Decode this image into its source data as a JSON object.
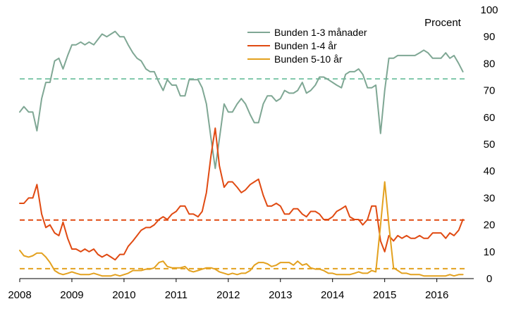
{
  "chart_data": {
    "type": "line",
    "title": "",
    "xlabel": "",
    "ylabel": "",
    "y_unit_label": "Procent",
    "xlim": [
      2008.0,
      2016.6
    ],
    "ylim": [
      0,
      100
    ],
    "x_ticks": [
      2008,
      2009,
      2010,
      2011,
      2012,
      2013,
      2014,
      2015,
      2016
    ],
    "x_tick_labels": [
      "2008",
      "2009",
      "2010",
      "2011",
      "2012",
      "2013",
      "2014",
      "2015",
      "2016"
    ],
    "y_ticks": [
      0,
      10,
      20,
      30,
      40,
      50,
      60,
      70,
      80,
      90,
      100
    ],
    "y_tick_labels": [
      "0",
      "10",
      "20",
      "30",
      "40",
      "50",
      "60",
      "70",
      "80",
      "90",
      "100"
    ],
    "y_axis_side": "right",
    "grid": false,
    "legend_position": "top-center",
    "series": [
      {
        "name": "Bunden 1-3 månader",
        "color": "#7fa794",
        "x": [
          2008.0,
          2008.08,
          2008.17,
          2008.25,
          2008.33,
          2008.42,
          2008.5,
          2008.58,
          2008.67,
          2008.75,
          2008.83,
          2008.92,
          2009.0,
          2009.08,
          2009.17,
          2009.25,
          2009.33,
          2009.42,
          2009.5,
          2009.58,
          2009.67,
          2009.75,
          2009.83,
          2009.92,
          2010.0,
          2010.08,
          2010.17,
          2010.25,
          2010.33,
          2010.42,
          2010.5,
          2010.58,
          2010.67,
          2010.75,
          2010.83,
          2010.92,
          2011.0,
          2011.08,
          2011.17,
          2011.25,
          2011.33,
          2011.42,
          2011.5,
          2011.58,
          2011.67,
          2011.75,
          2011.83,
          2011.92,
          2012.0,
          2012.08,
          2012.17,
          2012.25,
          2012.33,
          2012.42,
          2012.5,
          2012.58,
          2012.67,
          2012.75,
          2012.83,
          2012.92,
          2013.0,
          2013.08,
          2013.17,
          2013.25,
          2013.33,
          2013.42,
          2013.5,
          2013.58,
          2013.67,
          2013.75,
          2013.83,
          2013.92,
          2014.0,
          2014.08,
          2014.17,
          2014.25,
          2014.33,
          2014.42,
          2014.5,
          2014.58,
          2014.67,
          2014.75,
          2014.83,
          2014.92,
          2015.0,
          2015.08,
          2015.17,
          2015.25,
          2015.33,
          2015.42,
          2015.5,
          2015.58,
          2015.67,
          2015.75,
          2015.83,
          2015.92,
          2016.0,
          2016.08,
          2016.17,
          2016.25,
          2016.33,
          2016.42,
          2016.5
        ],
        "values": [
          62,
          64,
          62,
          62,
          55,
          67,
          73,
          73,
          81,
          82,
          78,
          83,
          87,
          87,
          88,
          87,
          88,
          87,
          89,
          91,
          90,
          91,
          92,
          90,
          90,
          87,
          84,
          82,
          81,
          78,
          77,
          77,
          73,
          70,
          74,
          72,
          72,
          68,
          68,
          74,
          74,
          74,
          71,
          65,
          52,
          41,
          52,
          65,
          62,
          62,
          65,
          67,
          65,
          61,
          58,
          58,
          65,
          68,
          68,
          66,
          67,
          70,
          69,
          69,
          70,
          73,
          69,
          70,
          72,
          75,
          75,
          74,
          73,
          72,
          71,
          76,
          77,
          77,
          78,
          76,
          71,
          71,
          72,
          54,
          70,
          82,
          82,
          83,
          83,
          83,
          83,
          83,
          84,
          85,
          84,
          82,
          82,
          82,
          84,
          82,
          83,
          80,
          77
        ]
      },
      {
        "name": "Bunden 1-4 år",
        "color": "#e04a12",
        "x": [
          2008.0,
          2008.08,
          2008.17,
          2008.25,
          2008.33,
          2008.42,
          2008.5,
          2008.58,
          2008.67,
          2008.75,
          2008.83,
          2008.92,
          2009.0,
          2009.08,
          2009.17,
          2009.25,
          2009.33,
          2009.42,
          2009.5,
          2009.58,
          2009.67,
          2009.75,
          2009.83,
          2009.92,
          2010.0,
          2010.08,
          2010.17,
          2010.25,
          2010.33,
          2010.42,
          2010.5,
          2010.58,
          2010.67,
          2010.75,
          2010.83,
          2010.92,
          2011.0,
          2011.08,
          2011.17,
          2011.25,
          2011.33,
          2011.42,
          2011.5,
          2011.58,
          2011.67,
          2011.75,
          2011.83,
          2011.92,
          2012.0,
          2012.08,
          2012.17,
          2012.25,
          2012.33,
          2012.42,
          2012.5,
          2012.58,
          2012.67,
          2012.75,
          2012.83,
          2012.92,
          2013.0,
          2013.08,
          2013.17,
          2013.25,
          2013.33,
          2013.42,
          2013.5,
          2013.58,
          2013.67,
          2013.75,
          2013.83,
          2013.92,
          2014.0,
          2014.08,
          2014.17,
          2014.25,
          2014.33,
          2014.42,
          2014.5,
          2014.58,
          2014.67,
          2014.75,
          2014.83,
          2014.92,
          2015.0,
          2015.08,
          2015.17,
          2015.25,
          2015.33,
          2015.42,
          2015.5,
          2015.58,
          2015.67,
          2015.75,
          2015.83,
          2015.92,
          2016.0,
          2016.08,
          2016.17,
          2016.25,
          2016.33,
          2016.42,
          2016.5
        ],
        "values": [
          28,
          28,
          30,
          30,
          35,
          24,
          19,
          20,
          17,
          16,
          21,
          15,
          11,
          11,
          10,
          11,
          10,
          11,
          9,
          8,
          9,
          8,
          7,
          9,
          9,
          12,
          14,
          16,
          18,
          19,
          19,
          20,
          22,
          23,
          22,
          24,
          25,
          27,
          27,
          24,
          24,
          23,
          25,
          32,
          46,
          56,
          42,
          34,
          36,
          36,
          34,
          32,
          33,
          35,
          36,
          37,
          31,
          27,
          27,
          28,
          27,
          24,
          24,
          26,
          26,
          24,
          23,
          25,
          25,
          24,
          22,
          22,
          23,
          25,
          26,
          27,
          23,
          22,
          22,
          20,
          22,
          27,
          27,
          14,
          10,
          16,
          14,
          16,
          15,
          16,
          15,
          15,
          16,
          15,
          15,
          17,
          17,
          17,
          15,
          17,
          16,
          18,
          22
        ]
      },
      {
        "name": "Bunden 5-10 år",
        "color": "#e3a11f",
        "x": [
          2008.0,
          2008.08,
          2008.17,
          2008.25,
          2008.33,
          2008.42,
          2008.5,
          2008.58,
          2008.67,
          2008.75,
          2008.83,
          2008.92,
          2009.0,
          2009.08,
          2009.17,
          2009.25,
          2009.33,
          2009.42,
          2009.5,
          2009.58,
          2009.67,
          2009.75,
          2009.83,
          2009.92,
          2010.0,
          2010.08,
          2010.17,
          2010.25,
          2010.33,
          2010.42,
          2010.5,
          2010.58,
          2010.67,
          2010.75,
          2010.83,
          2010.92,
          2011.0,
          2011.08,
          2011.17,
          2011.25,
          2011.33,
          2011.42,
          2011.5,
          2011.58,
          2011.67,
          2011.75,
          2011.83,
          2011.92,
          2012.0,
          2012.08,
          2012.17,
          2012.25,
          2012.33,
          2012.42,
          2012.5,
          2012.58,
          2012.67,
          2012.75,
          2012.83,
          2012.92,
          2013.0,
          2013.08,
          2013.17,
          2013.25,
          2013.33,
          2013.42,
          2013.5,
          2013.58,
          2013.67,
          2013.75,
          2013.83,
          2013.92,
          2014.0,
          2014.08,
          2014.17,
          2014.25,
          2014.33,
          2014.42,
          2014.5,
          2014.58,
          2014.67,
          2014.75,
          2014.83,
          2014.92,
          2015.0,
          2015.08,
          2015.17,
          2015.25,
          2015.33,
          2015.42,
          2015.5,
          2015.58,
          2015.67,
          2015.75,
          2015.83,
          2015.92,
          2016.0,
          2016.08,
          2016.17,
          2016.25,
          2016.33,
          2016.42,
          2016.5
        ],
        "values": [
          10.5,
          8.5,
          8,
          8.5,
          9.5,
          9.5,
          8,
          6,
          3,
          2,
          1.5,
          2,
          2.5,
          2,
          1.5,
          1.5,
          1.5,
          2,
          1.5,
          1,
          1,
          1,
          1.5,
          1,
          1.5,
          2,
          3,
          3,
          3,
          3.5,
          3.5,
          4,
          6,
          6.5,
          4.5,
          4,
          4,
          4,
          4.5,
          3,
          2.5,
          3,
          3.5,
          4,
          4,
          3.5,
          2.5,
          2,
          1.5,
          2,
          1.5,
          2,
          2,
          3,
          5,
          6,
          6,
          5.5,
          4.5,
          5,
          6,
          6,
          6,
          5,
          6.5,
          5,
          5.5,
          4,
          3.5,
          3.5,
          3,
          2,
          2,
          1.5,
          1.5,
          1.5,
          1.5,
          2,
          2.5,
          2,
          2,
          3,
          2.5,
          20,
          36,
          20,
          4,
          3,
          2,
          2,
          1.5,
          1.5,
          1.5,
          1,
          1,
          1,
          1,
          1,
          1,
          1.5,
          1,
          1.5,
          1.5
        ]
      }
    ],
    "reference_lines": [
      {
        "series": "Bunden 1-3 månader",
        "value": 74.3,
        "color": "#7fc8a9",
        "style": "dashed"
      },
      {
        "series": "Bunden 1-4 år",
        "value": 21.8,
        "color": "#e04a12",
        "style": "dashed"
      },
      {
        "series": "Bunden 5-10 år",
        "value": 3.7,
        "color": "#e3a11f",
        "style": "dashed"
      }
    ]
  }
}
